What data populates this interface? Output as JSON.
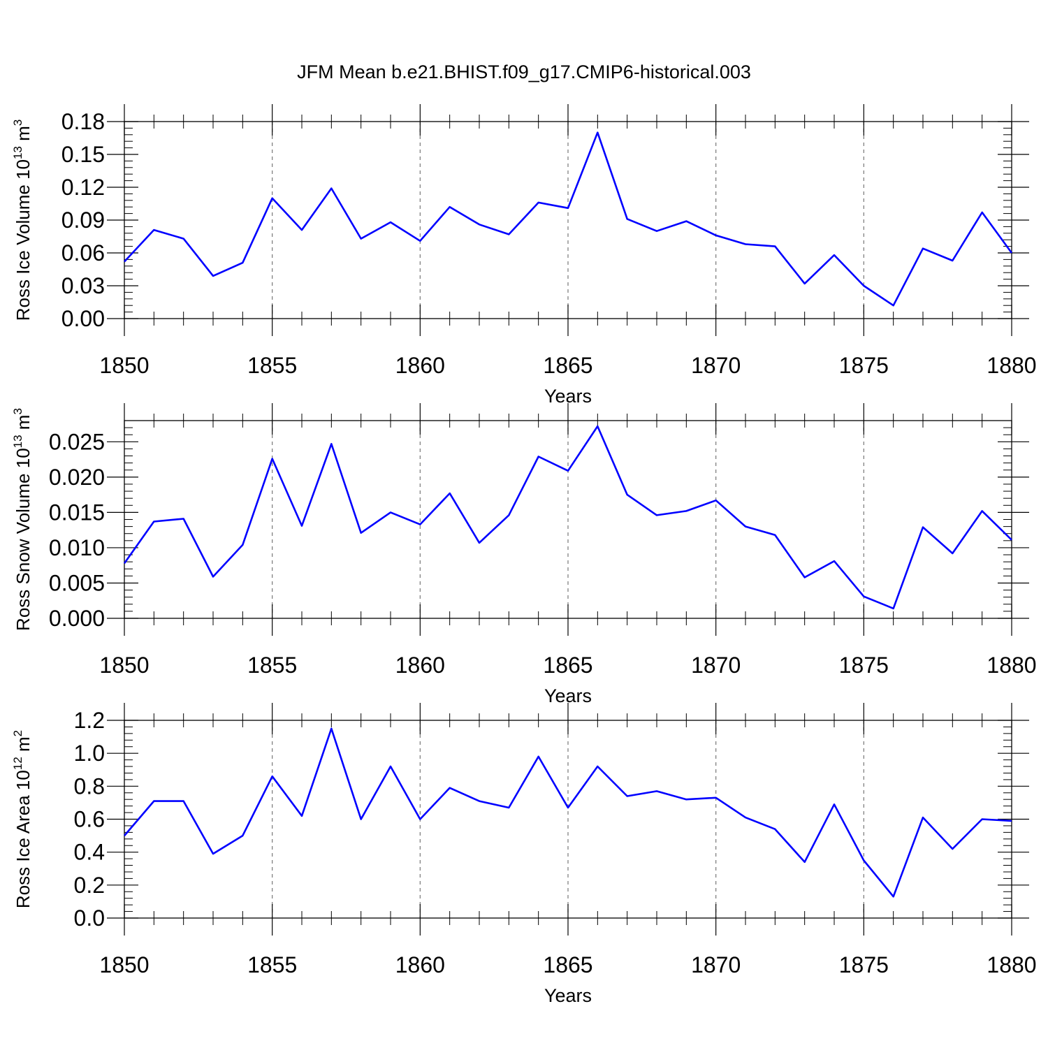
{
  "title": "JFM Mean b.e21.BHIST.f09_g17.CMIP6-historical.003",
  "chart_data": [
    {
      "type": "line",
      "ylabel": "Ross Ice Volume 10",
      "ylabel_exp": "13",
      "ylabel_unit": " m",
      "ylabel_unit_exp": "3",
      "xlabel": "Years",
      "xlim": [
        1850,
        1880
      ],
      "ylim": [
        0,
        0.18
      ],
      "yticks": [
        0.0,
        0.03,
        0.06,
        0.09,
        0.12,
        0.15,
        0.18
      ],
      "ytick_labels": [
        "0.00",
        "0.03",
        "0.06",
        "0.09",
        "0.12",
        "0.15",
        "0.18"
      ],
      "xticks": [
        1850,
        1855,
        1860,
        1865,
        1870,
        1875,
        1880
      ],
      "xtick_labels": [
        "1850",
        "1855",
        "1860",
        "1865",
        "1870",
        "1875",
        "1880"
      ],
      "grid": "dashed vertical at major x ticks",
      "color": "#0000ff",
      "x": [
        1850,
        1851,
        1852,
        1853,
        1854,
        1855,
        1856,
        1857,
        1858,
        1859,
        1860,
        1861,
        1862,
        1863,
        1864,
        1865,
        1866,
        1867,
        1868,
        1869,
        1870,
        1871,
        1872,
        1873,
        1874,
        1875,
        1876,
        1877,
        1878,
        1879,
        1880
      ],
      "values": [
        0.052,
        0.081,
        0.073,
        0.039,
        0.051,
        0.11,
        0.081,
        0.119,
        0.073,
        0.088,
        0.071,
        0.102,
        0.086,
        0.077,
        0.106,
        0.101,
        0.17,
        0.091,
        0.08,
        0.089,
        0.076,
        0.068,
        0.066,
        0.032,
        0.058,
        0.03,
        0.012,
        0.064,
        0.053,
        0.097,
        0.06
      ]
    },
    {
      "type": "line",
      "ylabel": "Ross Snow Volume 10",
      "ylabel_exp": "13",
      "ylabel_unit": " m",
      "ylabel_unit_exp": "3",
      "xlabel": "Years",
      "xlim": [
        1850,
        1880
      ],
      "ylim": [
        0,
        0.028
      ],
      "yticks": [
        0.0,
        0.005,
        0.01,
        0.015,
        0.02,
        0.025
      ],
      "ytick_labels": [
        "0.000",
        "0.005",
        "0.010",
        "0.015",
        "0.020",
        "0.025"
      ],
      "xticks": [
        1850,
        1855,
        1860,
        1865,
        1870,
        1875,
        1880
      ],
      "xtick_labels": [
        "1850",
        "1855",
        "1860",
        "1865",
        "1870",
        "1875",
        "1880"
      ],
      "grid": "dashed vertical at major x ticks",
      "color": "#0000ff",
      "x": [
        1850,
        1851,
        1852,
        1853,
        1854,
        1855,
        1856,
        1857,
        1858,
        1859,
        1860,
        1861,
        1862,
        1863,
        1864,
        1865,
        1866,
        1867,
        1868,
        1869,
        1870,
        1871,
        1872,
        1873,
        1874,
        1875,
        1876,
        1877,
        1878,
        1879,
        1880
      ],
      "values": [
        0.0078,
        0.0137,
        0.0141,
        0.0059,
        0.0104,
        0.0226,
        0.0131,
        0.0247,
        0.0121,
        0.015,
        0.0133,
        0.0177,
        0.0107,
        0.0146,
        0.0229,
        0.0209,
        0.0272,
        0.0175,
        0.0146,
        0.0152,
        0.0167,
        0.013,
        0.0118,
        0.0058,
        0.0081,
        0.0031,
        0.0014,
        0.0129,
        0.0092,
        0.0152,
        0.0111
      ]
    },
    {
      "type": "line",
      "ylabel": "Ross Ice Area 10",
      "ylabel_exp": "12",
      "ylabel_unit": " m",
      "ylabel_unit_exp": "2",
      "xlabel": "Years",
      "xlim": [
        1850,
        1880
      ],
      "ylim": [
        0,
        1.2
      ],
      "yticks": [
        0.0,
        0.2,
        0.4,
        0.6,
        0.8,
        1.0,
        1.2
      ],
      "ytick_labels": [
        "0.0",
        "0.2",
        "0.4",
        "0.6",
        "0.8",
        "1.0",
        "1.2"
      ],
      "xticks": [
        1850,
        1855,
        1860,
        1865,
        1870,
        1875,
        1880
      ],
      "xtick_labels": [
        "1850",
        "1855",
        "1860",
        "1865",
        "1870",
        "1875",
        "1880"
      ],
      "grid": "dashed vertical at major x ticks",
      "color": "#0000ff",
      "x": [
        1850,
        1851,
        1852,
        1853,
        1854,
        1855,
        1856,
        1857,
        1858,
        1859,
        1860,
        1861,
        1862,
        1863,
        1864,
        1865,
        1866,
        1867,
        1868,
        1869,
        1870,
        1871,
        1872,
        1873,
        1874,
        1875,
        1876,
        1877,
        1878,
        1879,
        1880
      ],
      "values": [
        0.5,
        0.71,
        0.71,
        0.39,
        0.5,
        0.86,
        0.62,
        1.15,
        0.6,
        0.92,
        0.6,
        0.79,
        0.71,
        0.67,
        0.98,
        0.67,
        0.92,
        0.74,
        0.77,
        0.72,
        0.73,
        0.61,
        0.54,
        0.34,
        0.69,
        0.35,
        0.13,
        0.61,
        0.42,
        0.6,
        0.59
      ]
    }
  ]
}
